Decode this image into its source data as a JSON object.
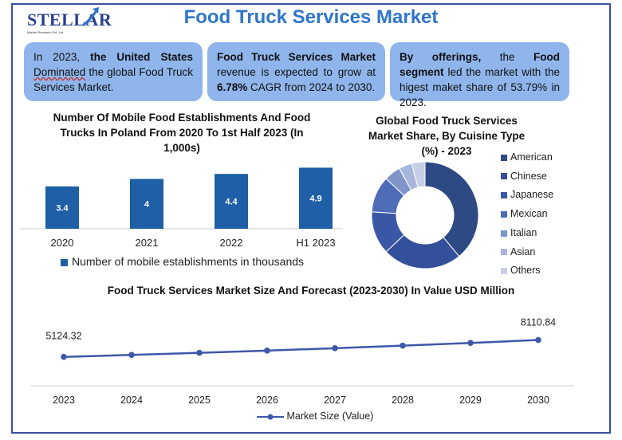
{
  "logo": {
    "text": "STELLAR",
    "sub": "Market Research Pvt. Ltd."
  },
  "title": "Food Truck Services Market",
  "boxes": {
    "b1": {
      "p1": "In 2023, ",
      "b1": "the United States",
      "p2": " ",
      "dom": "Dominated",
      "p3": " the global Food Truck Services Market."
    },
    "b2": {
      "b1": "Food Truck Services Market",
      "p1": " revenue is expected to grow at ",
      "b2": "6.78%",
      "p2": " CAGR from 2024 to 2030."
    },
    "b3": {
      "b1": "By offerings,",
      "p1": " the ",
      "b2": "Food segment",
      "p2": " led the market with the higest maket share of 53.79% in 2023."
    }
  },
  "colors": {
    "bar": "#1e5fa5",
    "line": "#3d58a8",
    "accent": "#2e75c9",
    "box": "#8fb5ec"
  },
  "chart_data": [
    {
      "type": "bar",
      "title": "Number Of Mobile Food Establishments And Food Trucks In Poland From 2020 To 1st Half 2023 (In 1,000s)",
      "categories": [
        "2020",
        "2021",
        "2022",
        "H1 2023"
      ],
      "series": [
        {
          "name": "Number of mobile establishments in thousands",
          "values": [
            3.4,
            4,
            4.4,
            4.9
          ]
        }
      ],
      "labels": [
        "3.4",
        "4",
        "4.4",
        "4.9"
      ],
      "ylim": [
        0,
        5.5
      ],
      "legend": "bottom"
    },
    {
      "type": "pie",
      "title": "Global Food Truck Services Market Share, By Cuisine Type (%) - 2023",
      "categories": [
        "American",
        "Chinese",
        "Japanese",
        "Mexican",
        "Italian",
        "Asian",
        "Others"
      ],
      "values": [
        39,
        24,
        13,
        11,
        5,
        4,
        4
      ],
      "colors": [
        "#2e4a85",
        "#34509a",
        "#3a57a6",
        "#4e6cb8",
        "#7f94c9",
        "#a9b6dc",
        "#c7cfe6"
      ],
      "legend": "right"
    },
    {
      "type": "line",
      "title": "Food Truck Services Market Size And Forecast (2023-2030) In Value USD Million",
      "x": [
        "2023",
        "2024",
        "2025",
        "2026",
        "2027",
        "2028",
        "2029",
        "2030"
      ],
      "series": [
        {
          "name": "Market Size (Value)",
          "values": [
            5124.32,
            5471,
            5842,
            6238,
            6661,
            7113,
            7596,
            8110.84
          ]
        }
      ],
      "point_labels": {
        "first": "5124.32",
        "last": "8110.84"
      },
      "ylim": [
        0,
        24000
      ],
      "legend": "bottom"
    }
  ]
}
